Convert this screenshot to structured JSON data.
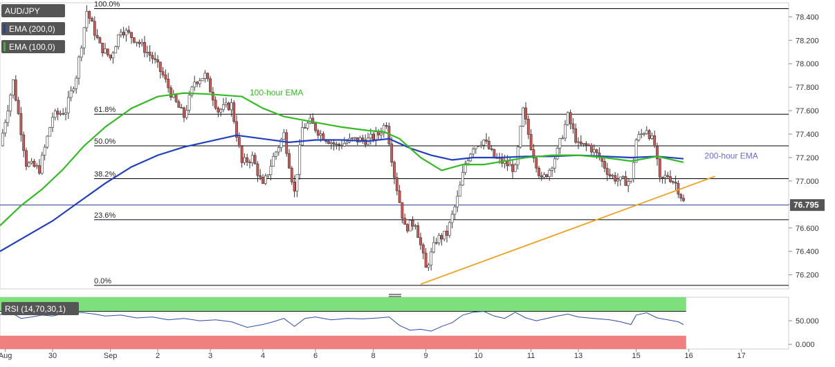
{
  "legend": {
    "symbol": "AUD/JPY",
    "ema200_label": "EMA (200,0)",
    "ema100_label": "EMA (100,0)",
    "rsi_label": "RSI (14,70,30,1)"
  },
  "colors": {
    "up": "#ffffff",
    "down": "#d9534f",
    "ema200": "#1f3fbf",
    "ema100": "#33bb22",
    "trendline": "#f0a020",
    "fib": "#000000",
    "price_line": "#2a3a8a",
    "rsi_line": "#2b4aa8",
    "rsi_overbought": "#7de07d",
    "rsi_oversold": "#f08080",
    "badge_bg": "#555555"
  },
  "chart_data": {
    "type": "candlestick",
    "ylim": [
      76.08,
      78.52
    ],
    "y_ticks": [
      76.2,
      76.4,
      76.6,
      76.8,
      77.0,
      77.2,
      77.4,
      77.6,
      77.8,
      78.0,
      78.2,
      78.4
    ],
    "y_tick_labels": [
      "76.200",
      "76.400",
      "76.600",
      "76.800",
      "77.000",
      "77.200",
      "77.400",
      "77.600",
      "77.800",
      "78.000",
      "78.200",
      "78.400"
    ],
    "x_labels": [
      {
        "label": "Aug",
        "t": 0.1
      },
      {
        "label": "30",
        "t": 1.0
      },
      {
        "label": "Sep",
        "t": 2.1
      },
      {
        "label": "2",
        "t": 3.0
      },
      {
        "label": "3",
        "t": 4.0
      },
      {
        "label": "4",
        "t": 5.0
      },
      {
        "label": "6",
        "t": 6.0
      },
      {
        "label": "8",
        "t": 7.1
      },
      {
        "label": "9",
        "t": 8.1
      },
      {
        "label": "10",
        "t": 9.1
      },
      {
        "label": "11",
        "t": 10.1
      },
      {
        "label": "13",
        "t": 11.0
      },
      {
        "label": "15",
        "t": 12.1
      },
      {
        "label": "16",
        "t": 13.1
      },
      {
        "label": "17",
        "t": 14.1
      }
    ],
    "x_range": [
      0,
      15.0
    ],
    "last_price": 76.795,
    "last_price_label": "76.795",
    "fibonacci": [
      {
        "label": "100.0%",
        "value": 78.47
      },
      {
        "label": "61.8%",
        "value": 77.57
      },
      {
        "label": "50.0%",
        "value": 77.3
      },
      {
        "label": "38.2%",
        "value": 77.02
      },
      {
        "label": "23.6%",
        "value": 76.67
      },
      {
        "label": "0.0%",
        "value": 76.11
      }
    ],
    "annotations": [
      {
        "text": "100-hour EMA",
        "t": 4.75,
        "y": 77.73
      },
      {
        "text": "200-hour EMA",
        "t": 13.4,
        "y": 77.19
      }
    ],
    "trendline": [
      [
        8.0,
        76.12
      ],
      [
        13.6,
        77.04
      ]
    ],
    "ema200": [
      [
        0.0,
        76.4
      ],
      [
        0.5,
        76.53
      ],
      [
        1.0,
        76.66
      ],
      [
        1.5,
        76.82
      ],
      [
        2.0,
        76.98
      ],
      [
        2.5,
        77.12
      ],
      [
        3.0,
        77.22
      ],
      [
        3.5,
        77.29
      ],
      [
        4.0,
        77.34
      ],
      [
        4.5,
        77.39
      ],
      [
        5.0,
        77.36
      ],
      [
        5.5,
        77.33
      ],
      [
        6.0,
        77.35
      ],
      [
        6.5,
        77.35
      ],
      [
        7.0,
        77.34
      ],
      [
        7.4,
        77.36
      ],
      [
        7.8,
        77.28
      ],
      [
        8.2,
        77.22
      ],
      [
        8.6,
        77.18
      ],
      [
        9.0,
        77.2
      ],
      [
        9.5,
        77.2
      ],
      [
        10.0,
        77.21
      ],
      [
        10.5,
        77.21
      ],
      [
        11.0,
        77.22
      ],
      [
        11.5,
        77.21
      ],
      [
        12.0,
        77.2
      ],
      [
        12.5,
        77.21
      ],
      [
        13.0,
        77.19
      ]
    ],
    "ema100": [
      [
        0.0,
        76.62
      ],
      [
        0.4,
        76.79
      ],
      [
        0.8,
        76.93
      ],
      [
        1.2,
        77.1
      ],
      [
        1.6,
        77.3
      ],
      [
        2.0,
        77.46
      ],
      [
        2.5,
        77.62
      ],
      [
        3.0,
        77.72
      ],
      [
        3.5,
        77.75
      ],
      [
        4.0,
        77.74
      ],
      [
        4.6,
        77.72
      ],
      [
        5.0,
        77.62
      ],
      [
        5.4,
        77.55
      ],
      [
        6.0,
        77.5
      ],
      [
        6.5,
        77.46
      ],
      [
        7.0,
        77.43
      ],
      [
        7.3,
        77.42
      ],
      [
        7.6,
        77.36
      ],
      [
        8.0,
        77.2
      ],
      [
        8.4,
        77.09
      ],
      [
        8.8,
        77.14
      ],
      [
        9.2,
        77.14
      ],
      [
        9.6,
        77.17
      ],
      [
        10.0,
        77.2
      ],
      [
        10.5,
        77.22
      ],
      [
        11.0,
        77.22
      ],
      [
        11.5,
        77.2
      ],
      [
        12.0,
        77.17
      ],
      [
        12.5,
        77.21
      ],
      [
        13.0,
        77.16
      ]
    ],
    "candles_anchor": [
      [
        0.0,
        77.3
      ],
      [
        0.25,
        77.85
      ],
      [
        0.5,
        77.15
      ],
      [
        0.75,
        77.1
      ],
      [
        1.0,
        77.55
      ],
      [
        1.25,
        77.6
      ],
      [
        1.45,
        77.9
      ],
      [
        1.65,
        78.45
      ],
      [
        1.9,
        78.15
      ],
      [
        2.1,
        78.05
      ],
      [
        2.3,
        78.3
      ],
      [
        2.6,
        78.2
      ],
      [
        2.9,
        78.05
      ],
      [
        3.1,
        77.9
      ],
      [
        3.3,
        77.7
      ],
      [
        3.5,
        77.55
      ],
      [
        3.7,
        77.85
      ],
      [
        3.9,
        77.9
      ],
      [
        4.15,
        77.6
      ],
      [
        4.4,
        77.65
      ],
      [
        4.6,
        77.15
      ],
      [
        4.8,
        77.2
      ],
      [
        5.0,
        76.95
      ],
      [
        5.2,
        77.2
      ],
      [
        5.4,
        77.4
      ],
      [
        5.6,
        76.9
      ],
      [
        5.75,
        77.45
      ],
      [
        5.9,
        77.5
      ],
      [
        6.1,
        77.4
      ],
      [
        6.4,
        77.3
      ],
      [
        6.7,
        77.35
      ],
      [
        7.0,
        77.35
      ],
      [
        7.2,
        77.4
      ],
      [
        7.35,
        77.5
      ],
      [
        7.5,
        77.05
      ],
      [
        7.7,
        76.6
      ],
      [
        7.9,
        76.65
      ],
      [
        8.1,
        76.25
      ],
      [
        8.3,
        76.5
      ],
      [
        8.5,
        76.55
      ],
      [
        8.7,
        76.85
      ],
      [
        8.85,
        77.15
      ],
      [
        9.0,
        77.3
      ],
      [
        9.2,
        77.35
      ],
      [
        9.4,
        77.2
      ],
      [
        9.6,
        77.15
      ],
      [
        9.8,
        77.1
      ],
      [
        9.95,
        77.6
      ],
      [
        10.1,
        77.3
      ],
      [
        10.3,
        77.0
      ],
      [
        10.45,
        77.1
      ],
      [
        10.6,
        77.25
      ],
      [
        10.8,
        77.55
      ],
      [
        11.0,
        77.3
      ],
      [
        11.2,
        77.3
      ],
      [
        11.4,
        77.2
      ],
      [
        11.6,
        77.05
      ],
      [
        11.8,
        77.0
      ],
      [
        12.0,
        77.0
      ],
      [
        12.1,
        77.35
      ],
      [
        12.3,
        77.45
      ],
      [
        12.45,
        77.3
      ],
      [
        12.55,
        77.0
      ],
      [
        12.7,
        77.05
      ],
      [
        12.85,
        76.98
      ],
      [
        13.0,
        76.82
      ]
    ],
    "rsi_ylim": [
      -10,
      100
    ],
    "rsi_levels": {
      "overbought": 70,
      "oversold": 30
    },
    "rsi_ticks": [
      0,
      50
    ],
    "rsi_tick_labels": [
      "0.000",
      "50.000"
    ],
    "rsi": [
      [
        0.0,
        63
      ],
      [
        0.2,
        68
      ],
      [
        0.4,
        55
      ],
      [
        0.6,
        58
      ],
      [
        0.8,
        62
      ],
      [
        1.0,
        60
      ],
      [
        1.2,
        65
      ],
      [
        1.4,
        68
      ],
      [
        1.6,
        67
      ],
      [
        1.8,
        64
      ],
      [
        2.0,
        60
      ],
      [
        2.3,
        62
      ],
      [
        2.6,
        56
      ],
      [
        2.9,
        58
      ],
      [
        3.2,
        52
      ],
      [
        3.5,
        55
      ],
      [
        3.8,
        50
      ],
      [
        4.1,
        52
      ],
      [
        4.4,
        48
      ],
      [
        4.7,
        36
      ],
      [
        5.0,
        42
      ],
      [
        5.2,
        48
      ],
      [
        5.4,
        55
      ],
      [
        5.6,
        38
      ],
      [
        5.8,
        55
      ],
      [
        6.0,
        58
      ],
      [
        6.3,
        52
      ],
      [
        6.6,
        55
      ],
      [
        6.9,
        54
      ],
      [
        7.2,
        56
      ],
      [
        7.4,
        58
      ],
      [
        7.6,
        40
      ],
      [
        7.8,
        30
      ],
      [
        8.0,
        32
      ],
      [
        8.2,
        28
      ],
      [
        8.4,
        38
      ],
      [
        8.6,
        46
      ],
      [
        8.8,
        62
      ],
      [
        9.0,
        68
      ],
      [
        9.2,
        70
      ],
      [
        9.4,
        60
      ],
      [
        9.6,
        55
      ],
      [
        9.8,
        68
      ],
      [
        10.0,
        56
      ],
      [
        10.2,
        50
      ],
      [
        10.4,
        55
      ],
      [
        10.6,
        60
      ],
      [
        10.8,
        64
      ],
      [
        11.0,
        58
      ],
      [
        11.3,
        55
      ],
      [
        11.6,
        52
      ],
      [
        11.8,
        48
      ],
      [
        12.0,
        42
      ],
      [
        12.1,
        62
      ],
      [
        12.3,
        67
      ],
      [
        12.5,
        56
      ],
      [
        12.7,
        52
      ],
      [
        12.9,
        48
      ],
      [
        13.0,
        42
      ]
    ]
  }
}
